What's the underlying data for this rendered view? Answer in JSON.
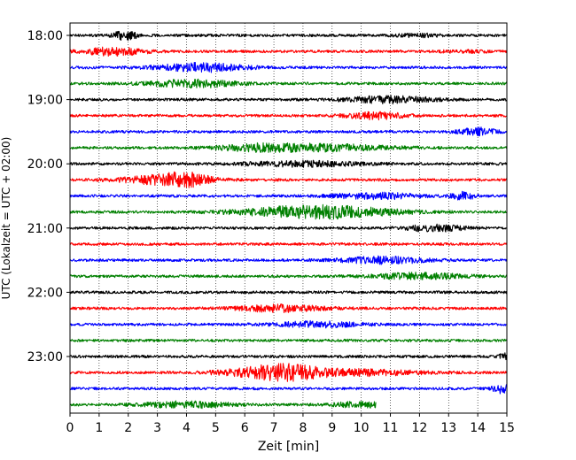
{
  "chart_data": {
    "type": "line",
    "title": "",
    "xlabel": "Zeit  [min]",
    "ylabel": "UTC (Lokalzeit = UTC + 02:00)",
    "xlim": [
      0,
      15
    ],
    "x_ticks": [
      0,
      1,
      2,
      3,
      4,
      5,
      6,
      7,
      8,
      9,
      10,
      11,
      12,
      13,
      14,
      15
    ],
    "y_tick_labels": [
      "18:00",
      "19:00",
      "20:00",
      "21:00",
      "22:00",
      "23:00"
    ],
    "row_interval_min": 15,
    "rows_per_tick": 4,
    "grid_x": true,
    "grid_style": "dotted",
    "colors": [
      "#000000",
      "#ff0000",
      "#0000ff",
      "#008000"
    ],
    "traces": [
      {
        "start": "18:00",
        "color": "#000000",
        "end_min": 15,
        "bursts": [
          [
            1.9,
            2.2,
            0.4
          ],
          [
            12,
            0.6,
            0.8
          ]
        ]
      },
      {
        "start": "18:15",
        "color": "#ff0000",
        "end_min": 15,
        "bursts": [
          [
            1.5,
            2.0,
            1.0
          ],
          [
            13.5,
            0.5,
            0.8
          ]
        ]
      },
      {
        "start": "18:30",
        "color": "#0000ff",
        "end_min": 15,
        "bursts": [
          [
            4.5,
            2.0,
            1.5
          ]
        ]
      },
      {
        "start": "18:45",
        "color": "#008000",
        "end_min": 15,
        "bursts": [
          [
            4.2,
            1.8,
            1.5
          ]
        ]
      },
      {
        "start": "19:00",
        "color": "#000000",
        "end_min": 15,
        "bursts": [
          [
            11.0,
            1.6,
            1.5
          ]
        ]
      },
      {
        "start": "19:15",
        "color": "#ff0000",
        "end_min": 15,
        "bursts": [
          [
            10.5,
            1.6,
            1.0
          ]
        ]
      },
      {
        "start": "19:30",
        "color": "#0000ff",
        "end_min": 15,
        "bursts": [
          [
            14.0,
            1.8,
            0.6
          ]
        ]
      },
      {
        "start": "19:45",
        "color": "#008000",
        "end_min": 15,
        "bursts": [
          [
            6.5,
            1.6,
            1.5
          ],
          [
            9.0,
            1.5,
            2.0
          ]
        ]
      },
      {
        "start": "20:00",
        "color": "#000000",
        "end_min": 15,
        "bursts": [
          [
            8.0,
            1.2,
            2.0
          ]
        ]
      },
      {
        "start": "20:15",
        "color": "#ff0000",
        "end_min": 15,
        "bursts": [
          [
            3.2,
            2.0,
            1.5
          ],
          [
            4.0,
            2.2,
            0.8
          ]
        ]
      },
      {
        "start": "20:30",
        "color": "#0000ff",
        "end_min": 15,
        "bursts": [
          [
            10.5,
            1.4,
            1.5
          ],
          [
            13.5,
            1.8,
            0.4
          ]
        ]
      },
      {
        "start": "20:45",
        "color": "#008000",
        "end_min": 15,
        "bursts": [
          [
            8.5,
            3.2,
            2.5
          ]
        ]
      },
      {
        "start": "21:00",
        "color": "#000000",
        "end_min": 15,
        "bursts": [
          [
            12.5,
            1.6,
            1.0
          ]
        ]
      },
      {
        "start": "21:15",
        "color": "#ff0000",
        "end_min": 15,
        "bursts": []
      },
      {
        "start": "21:30",
        "color": "#0000ff",
        "end_min": 15,
        "bursts": [
          [
            10.8,
            1.6,
            1.5
          ]
        ]
      },
      {
        "start": "21:45",
        "color": "#008000",
        "end_min": 15,
        "bursts": [
          [
            12.0,
            1.5,
            1.5
          ]
        ]
      },
      {
        "start": "22:00",
        "color": "#000000",
        "end_min": 15,
        "bursts": []
      },
      {
        "start": "22:15",
        "color": "#ff0000",
        "end_min": 15,
        "bursts": [
          [
            7.2,
            1.6,
            1.5
          ]
        ]
      },
      {
        "start": "22:30",
        "color": "#0000ff",
        "end_min": 15,
        "bursts": [
          [
            8.5,
            1.3,
            1.5
          ]
        ]
      },
      {
        "start": "22:45",
        "color": "#008000",
        "end_min": 15,
        "bursts": []
      },
      {
        "start": "23:00",
        "color": "#000000",
        "end_min": 15,
        "bursts": [
          [
            15.0,
            1.3,
            0.3
          ]
        ]
      },
      {
        "start": "23:15",
        "color": "#ff0000",
        "end_min": 15,
        "bursts": [
          [
            6.5,
            1.8,
            1.5
          ],
          [
            7.5,
            2.6,
            1.2
          ],
          [
            10.0,
            1.4,
            2.0
          ]
        ]
      },
      {
        "start": "23:30",
        "color": "#0000ff",
        "end_min": 15,
        "bursts": [
          [
            14.8,
            2.0,
            0.3
          ]
        ]
      },
      {
        "start": "23:45",
        "color": "#008000",
        "end_min": 10.5,
        "bursts": [
          [
            4.0,
            1.4,
            1.5
          ],
          [
            10.0,
            1.2,
            1.0
          ]
        ]
      }
    ]
  }
}
